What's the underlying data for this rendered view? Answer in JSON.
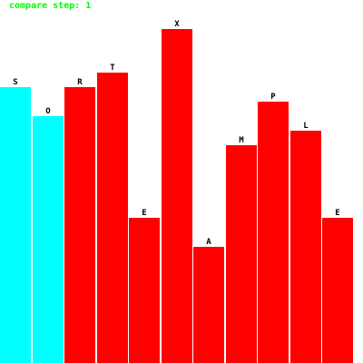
{
  "status": {
    "label": "compare step: 1",
    "color": "#00ff00"
  },
  "colors": {
    "active": "#00ffff",
    "default": "#ff0000"
  },
  "chart_data": {
    "type": "bar",
    "categories": [
      "S",
      "O",
      "R",
      "T",
      "E",
      "X",
      "A",
      "M",
      "P",
      "L",
      "E"
    ],
    "values": [
      19,
      17,
      19,
      20,
      10,
      23,
      8,
      15,
      18,
      16,
      10
    ],
    "states": [
      "active",
      "active",
      "default",
      "default",
      "default",
      "default",
      "default",
      "default",
      "default",
      "default",
      "default"
    ],
    "ylim": [
      0,
      25
    ]
  }
}
